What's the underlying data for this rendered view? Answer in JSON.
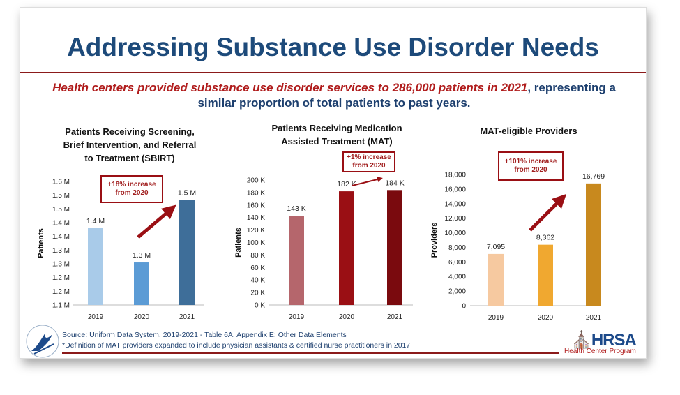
{
  "slide": {
    "title": "Addressing Substance Use Disorder Needs",
    "subtitle_highlight": "Health centers provided substance use disorder services to 286,000 patients in 2021",
    "subtitle_rest": ", representing a similar proportion of total patients to past years."
  },
  "footer": {
    "source": "Source:  Uniform Data System, 2019-2021 - Table 6A, Appendix E: Other Data Elements",
    "note": "*Definition of MAT providers expanded to include physician assistants & certified nurse practitioners in 2017",
    "logo_text": "HRSA",
    "logo_subtext": "Health Center Program"
  },
  "chart_data": [
    {
      "type": "bar",
      "title": [
        "Patients Receiving Screening,",
        "Brief Intervention, and Referral",
        "to Treatment (SBIRT)"
      ],
      "ylabel": "Patients",
      "categories": [
        "2019",
        "2020",
        "2021"
      ],
      "values": [
        1.38,
        1.255,
        1.483
      ],
      "data_labels": [
        "1.4 M",
        "1.3 M",
        "1.5 M"
      ],
      "ylim": [
        1.1,
        1.55
      ],
      "yticks": [
        1.1,
        1.15,
        1.2,
        1.25,
        1.3,
        1.35,
        1.4,
        1.45,
        1.5,
        1.55
      ],
      "ytick_labels": [
        "1.1 M",
        "1.2 M",
        "1.2 M",
        "1.3 M",
        "1.3 M",
        "1.4 M",
        "1.4 M",
        "1.5 M",
        "1.5 M",
        "1.6 M"
      ],
      "colors": [
        "#a9cbe9",
        "#5b9bd5",
        "#3e6e99"
      ],
      "annotation": [
        "+18% increase",
        "from 2020"
      ],
      "grid": false
    },
    {
      "type": "bar",
      "title": [
        "Patients Receiving Medication",
        "Assisted Treatment (MAT)"
      ],
      "ylabel": "Patients",
      "categories": [
        "2019",
        "2020",
        "2021"
      ],
      "values": [
        143000,
        182000,
        184000
      ],
      "data_labels": [
        "143 K",
        "182 K",
        "184 K"
      ],
      "ylim": [
        0,
        200000
      ],
      "yticks": [
        0,
        20000,
        40000,
        60000,
        80000,
        100000,
        120000,
        140000,
        160000,
        180000,
        200000
      ],
      "ytick_labels": [
        "0 K",
        "20 K",
        "40 K",
        "60 K",
        "80 K",
        "100 K",
        "120 K",
        "140 K",
        "160 K",
        "180 K",
        "200 K"
      ],
      "colors": [
        "#b5666c",
        "#9a0f14",
        "#7a0a0e"
      ],
      "annotation": [
        "+1% increase",
        "from 2020"
      ],
      "grid": false
    },
    {
      "type": "bar",
      "title": [
        "MAT-eligible Providers"
      ],
      "ylabel": "Providers",
      "categories": [
        "2019",
        "2020",
        "2021"
      ],
      "values": [
        7095,
        8362,
        16769
      ],
      "data_labels": [
        "7,095",
        "8,362",
        "16,769"
      ],
      "ylim": [
        0,
        18000
      ],
      "yticks": [
        0,
        2000,
        4000,
        6000,
        8000,
        10000,
        12000,
        14000,
        16000,
        18000
      ],
      "ytick_labels": [
        "0",
        "2,000",
        "4,000",
        "6,000",
        "8,000",
        "10,000",
        "12,000",
        "14,000",
        "16,000",
        "18,000"
      ],
      "colors": [
        "#f6c9a0",
        "#f0a830",
        "#c8891e"
      ],
      "annotation": [
        "+101% increase",
        "from 2020"
      ],
      "grid": false
    }
  ],
  "colors": {
    "title": "#1d4a7a",
    "accent_red": "#8b1a1a"
  }
}
